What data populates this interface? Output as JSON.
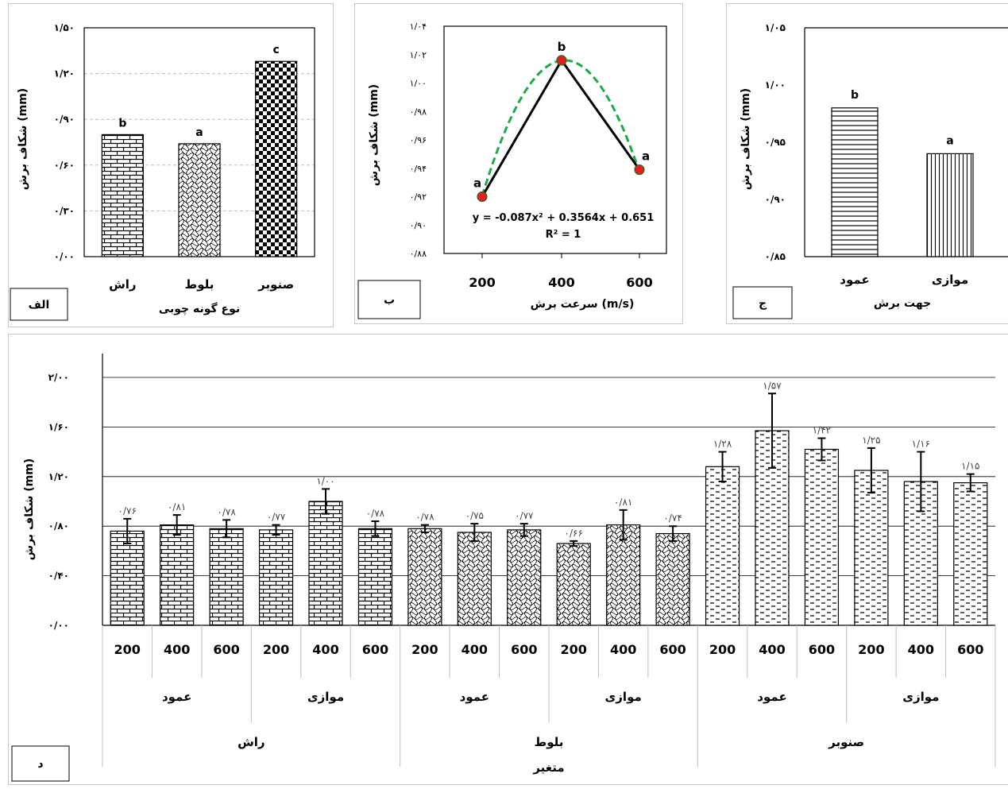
{
  "panels": [
    {
      "id": "A",
      "label_box": "الف",
      "ylabel": "شکاف برش (mm)",
      "xlabel": "نوع گونه چوبی",
      "chart_data": {
        "type": "bar",
        "categories": [
          "راش",
          "بلوط",
          "صنوبر"
        ],
        "values": [
          0.8,
          0.74,
          1.28
        ],
        "letters": [
          "b",
          "a",
          "c"
        ],
        "patterns": [
          "brick",
          "wave",
          "checker"
        ],
        "ylim": [
          0,
          1.5
        ],
        "yticks": [
          0,
          0.3,
          0.6,
          0.9,
          1.2,
          1.5
        ],
        "ytick_labels": [
          "۰/۰۰",
          "۰/۳۰",
          "۰/۶۰",
          "۰/۹۰",
          "۱/۲۰",
          "۱/۵۰"
        ],
        "grid": true
      }
    },
    {
      "id": "B",
      "label_box": "ب",
      "ylabel": "شکاف برش (mm)",
      "xlabel": "سرعت برش (m/s)",
      "chart_data": {
        "type": "line",
        "x": [
          200,
          400,
          600
        ],
        "x_labels": [
          "200",
          "400",
          "600"
        ],
        "values": [
          0.92,
          1.016,
          0.939
        ],
        "letters": [
          "a",
          "b",
          "a"
        ],
        "trendline": {
          "equation": "y = -0.087x² + 0.3564x + 0.651",
          "r2": "R² = 1",
          "style": "dashed-green"
        },
        "ylim": [
          0.88,
          1.04
        ],
        "yticks": [
          0.88,
          0.9,
          0.92,
          0.94,
          0.96,
          0.98,
          1.0,
          1.02,
          1.04
        ],
        "ytick_labels": [
          "۰/۸۸",
          "۰/۹۰",
          "۰/۹۲",
          "۰/۹۴",
          "۰/۹۶",
          "۰/۹۸",
          "۱/۰۰",
          "۱/۰۲",
          "۱/۰۴"
        ],
        "grid": false
      }
    },
    {
      "id": "C",
      "label_box": "ج",
      "ylabel": "شکاف برش (mm)",
      "xlabel": "جهت برش",
      "chart_data": {
        "type": "bar",
        "categories": [
          "عمود",
          "موازی"
        ],
        "values": [
          0.98,
          0.94
        ],
        "letters": [
          "b",
          "a"
        ],
        "patterns": [
          "hlines",
          "vlines"
        ],
        "ylim": [
          0.85,
          1.05
        ],
        "yticks": [
          0.85,
          0.9,
          0.95,
          1.0,
          1.05
        ],
        "ytick_labels": [
          "۰/۸۵",
          "۰/۹۰",
          "۰/۹۵",
          "۱/۰۰",
          "۱/۰۵"
        ],
        "grid": false
      }
    }
  ],
  "panelD": {
    "id": "D",
    "label_box": "د",
    "ylabel": "شکاف برش (mm)",
    "xlabel": "متغیر",
    "chart_data": {
      "type": "bar",
      "speeds": [
        "200",
        "400",
        "600",
        "200",
        "400",
        "600",
        "200",
        "400",
        "600",
        "200",
        "400",
        "600",
        "200",
        "400",
        "600",
        "200",
        "400",
        "600"
      ],
      "directions": [
        "عمود",
        "موازی",
        "عمود",
        "موازی",
        "عمود",
        "موازی"
      ],
      "species": [
        "راش",
        "بلوط",
        "صنوبر"
      ],
      "values": [
        0.76,
        0.81,
        0.78,
        0.77,
        1.0,
        0.78,
        0.78,
        0.75,
        0.77,
        0.66,
        0.81,
        0.74,
        1.28,
        1.57,
        1.42,
        1.25,
        1.16,
        1.15
      ],
      "value_labels": [
        "۰/۷۶",
        "۰/۸۱",
        "۰/۷۸",
        "۰/۷۷",
        "۱/۰۰",
        "۰/۷۸",
        "۰/۷۸",
        "۰/۷۵",
        "۰/۷۷",
        "۰/۶۶",
        "۰/۸۱",
        "۰/۷۴",
        "۱/۲۸",
        "۱/۵۷",
        "۱/۴۲",
        "۱/۲۵",
        "۱/۱۶",
        "۱/۱۵"
      ],
      "errors": [
        0.1,
        0.08,
        0.07,
        0.04,
        0.1,
        0.06,
        0.03,
        0.07,
        0.05,
        0.02,
        0.12,
        0.06,
        0.12,
        0.3,
        0.09,
        0.18,
        0.24,
        0.07
      ],
      "patterns_by_species": [
        "brick",
        "wave",
        "dash"
      ],
      "ylim": [
        0,
        2.0
      ],
      "yticks": [
        0,
        0.4,
        0.8,
        1.2,
        1.6,
        2.0
      ],
      "ytick_labels": [
        "۰/۰۰",
        "۰/۴۰",
        "۰/۸۰",
        "۱/۲۰",
        "۱/۶۰",
        "۲/۰۰"
      ],
      "grid": true
    }
  },
  "colors": {
    "axis": "#000000",
    "grid": "#bfbfbf",
    "trend": "#22a84a",
    "marker": "#e02020",
    "marker_edge": "#2a6a20",
    "text": "#000000",
    "value_label": "#444444"
  }
}
